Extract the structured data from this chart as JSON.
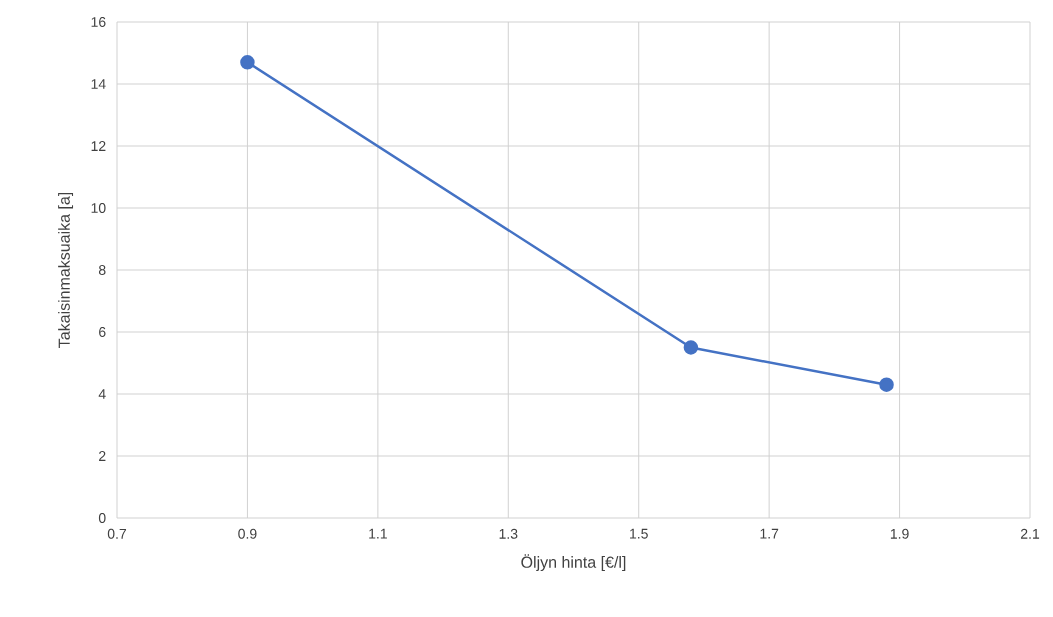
{
  "chart_data": {
    "type": "line",
    "xlabel": "Öljyn hinta [€/l]",
    "ylabel": "Takaisinmaksuaika [a]",
    "x": [
      0.9,
      1.58,
      1.88
    ],
    "series": [
      {
        "color": "#4472c4",
        "values": [
          14.7,
          5.5,
          4.3
        ]
      }
    ],
    "xlim": [
      0.7,
      2.1
    ],
    "xticks": [
      0.7,
      0.9,
      1.1,
      1.3,
      1.5,
      1.7,
      1.9,
      2.1
    ],
    "ylim": [
      0,
      16
    ],
    "yticks": [
      0,
      2,
      4,
      6,
      8,
      10,
      12,
      14,
      16
    ],
    "grid": true,
    "marker": "circle",
    "line_style": "solid"
  }
}
